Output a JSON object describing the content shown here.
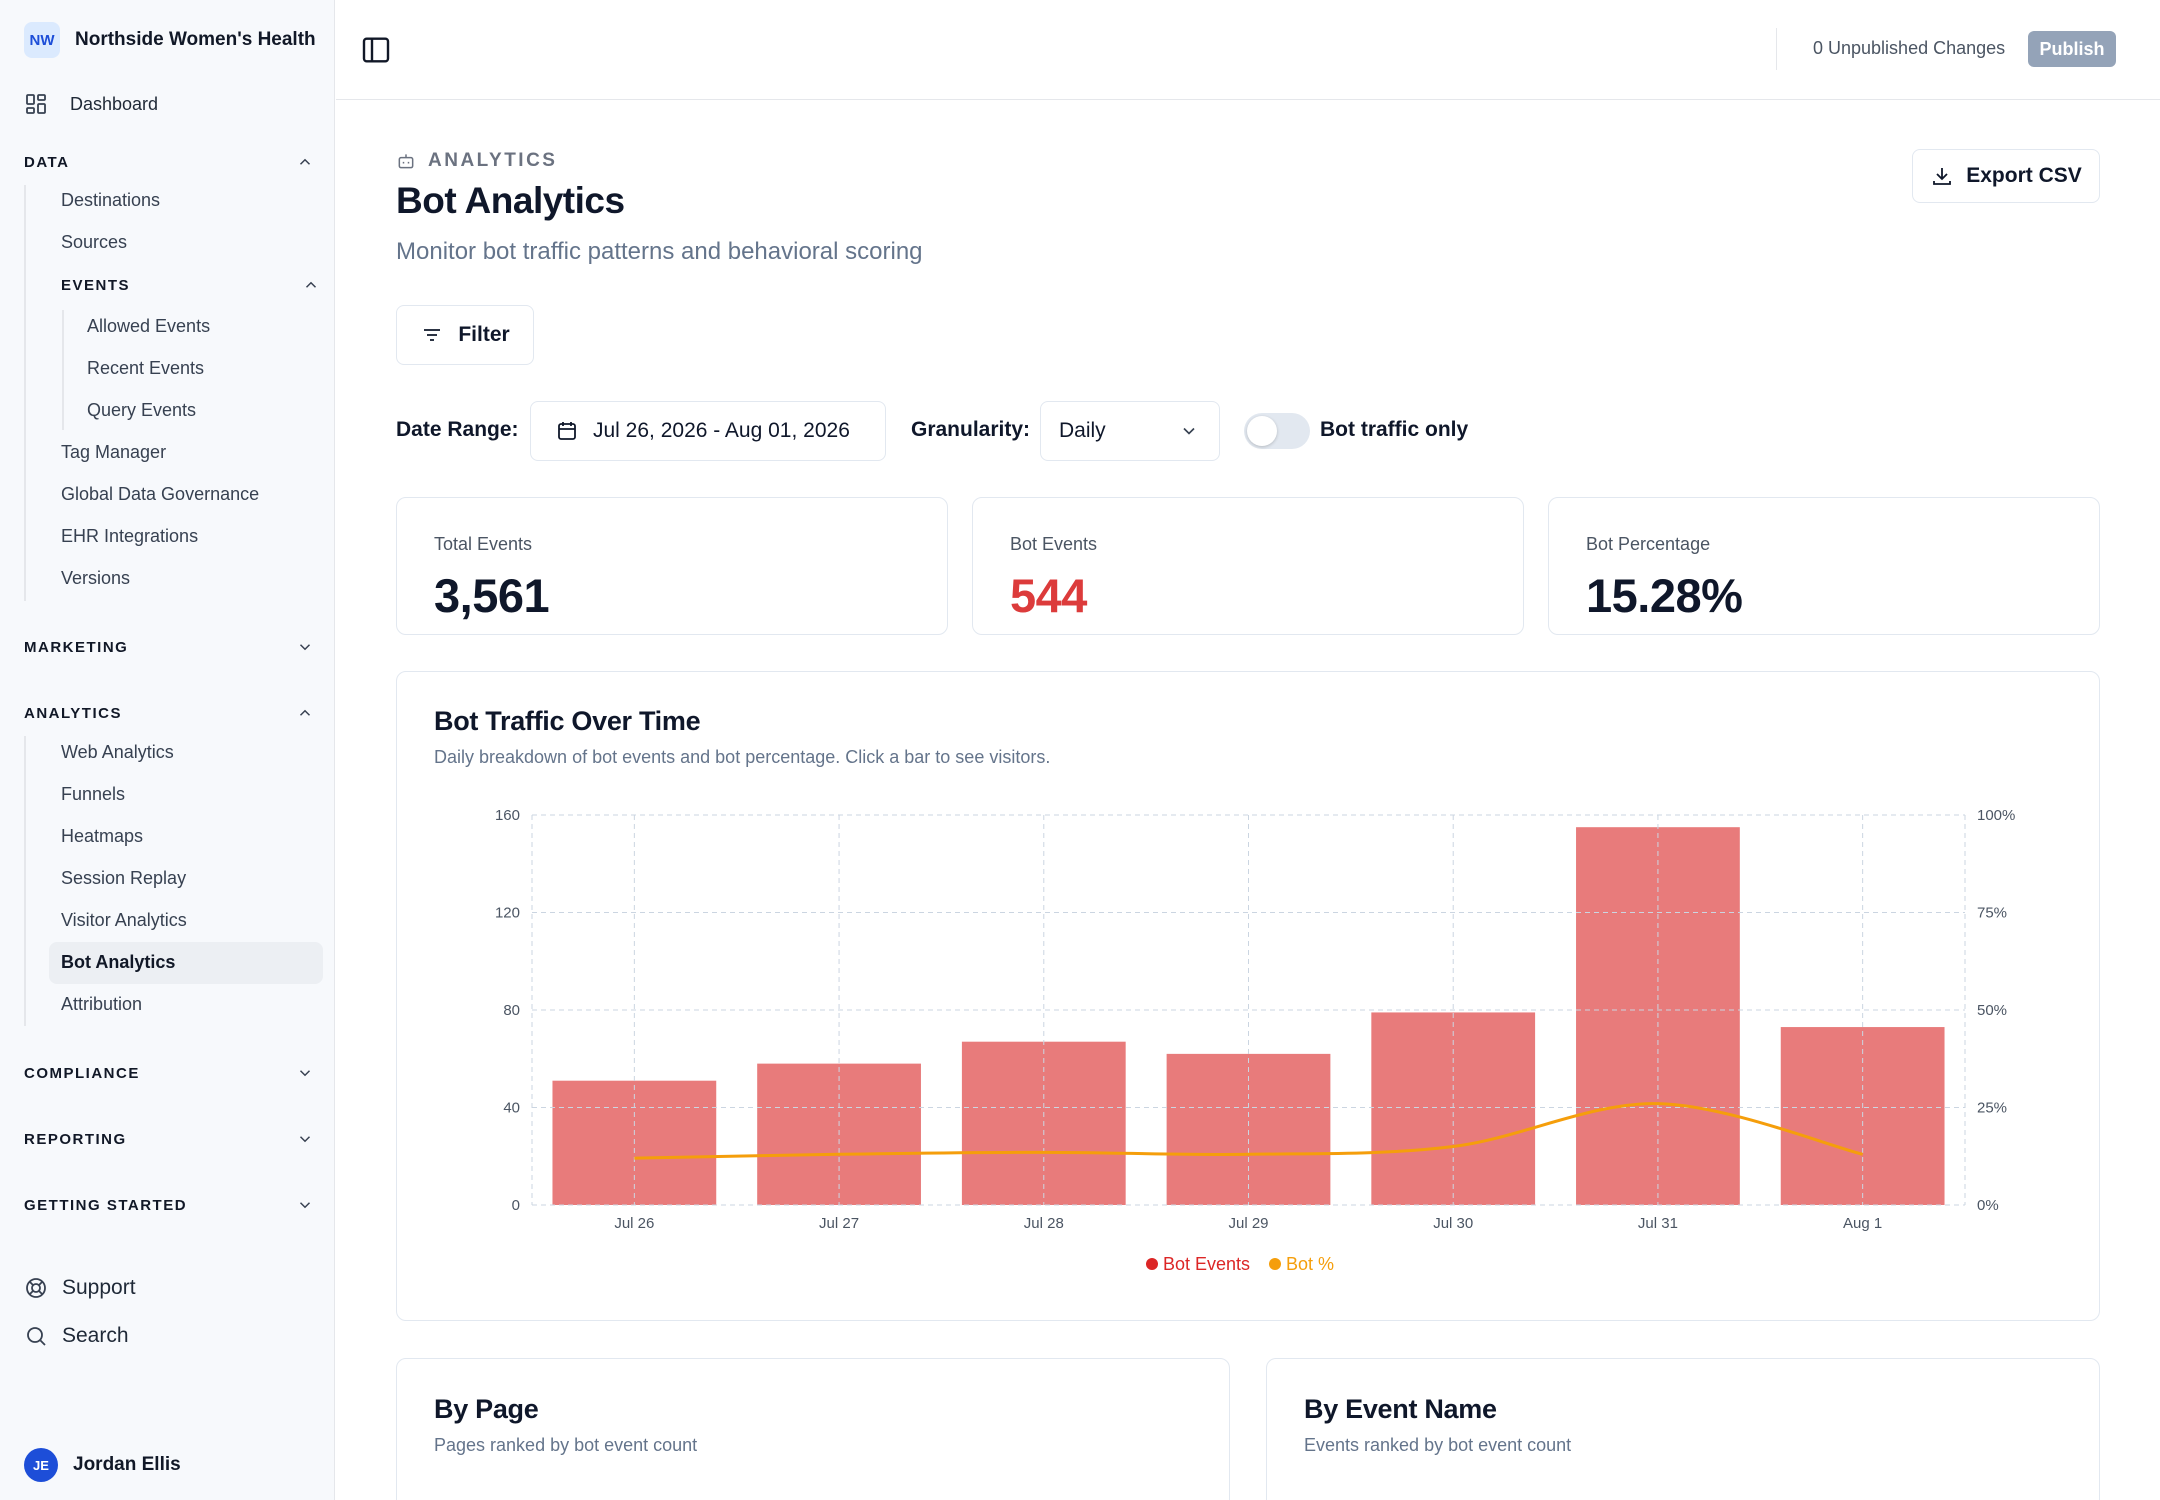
{
  "org": {
    "initials": "NW",
    "name": "Northside Women's Health"
  },
  "nav": {
    "dashboard": "Dashboard",
    "data": {
      "label": "DATA",
      "items": [
        "Destinations",
        "Sources"
      ],
      "events": {
        "label": "EVENTS",
        "items": [
          "Allowed Events",
          "Recent Events",
          "Query Events"
        ]
      },
      "items_after": [
        "Tag Manager",
        "Global Data Governance",
        "EHR Integrations",
        "Versions"
      ]
    },
    "marketing": "MARKETING",
    "analytics": {
      "label": "ANALYTICS",
      "items": [
        "Web Analytics",
        "Funnels",
        "Heatmaps",
        "Session Replay",
        "Visitor Analytics",
        "Bot Analytics",
        "Attribution"
      ],
      "active": "Bot Analytics"
    },
    "compliance": "COMPLIANCE",
    "reporting": "REPORTING",
    "getting_started": "GETTING STARTED",
    "support": "Support",
    "search": "Search",
    "user": {
      "initials": "JE",
      "name": "Jordan Ellis"
    }
  },
  "topbar": {
    "unpublished": "0 Unpublished Changes",
    "publish": "Publish"
  },
  "header": {
    "eyebrow": "ANALYTICS",
    "title": "Bot Analytics",
    "subtitle": "Monitor bot traffic patterns and behavioral scoring",
    "export": "Export CSV",
    "filter": "Filter"
  },
  "controls": {
    "date_label": "Date Range:",
    "date_value": "Jul 26, 2026 - Aug 01, 2026",
    "granularity_label": "Granularity:",
    "granularity_value": "Daily",
    "toggle_label": "Bot traffic only",
    "toggle_on": false
  },
  "stats": [
    {
      "label": "Total Events",
      "value": "3,561"
    },
    {
      "label": "Bot Events",
      "value": "544"
    },
    {
      "label": "Bot Percentage",
      "value": "15.28%"
    }
  ],
  "chart_card": {
    "title": "Bot Traffic Over Time",
    "subtitle": "Daily breakdown of bot events and bot percentage. Click a bar to see visitors."
  },
  "chart_data": {
    "type": "bar",
    "categories": [
      "Jul 26",
      "Jul 27",
      "Jul 28",
      "Jul 29",
      "Jul 30",
      "Jul 31",
      "Aug 1"
    ],
    "series": [
      {
        "name": "Bot Events",
        "type": "bar",
        "axis": "left",
        "color": "#e87b7b",
        "values": [
          51,
          58,
          67,
          62,
          79,
          155,
          73
        ]
      },
      {
        "name": "Bot %",
        "type": "line",
        "axis": "right",
        "color": "#f59e0b",
        "values": [
          12,
          13,
          13.5,
          13,
          15,
          26,
          13
        ]
      }
    ],
    "y_left": {
      "min": 0,
      "max": 160,
      "ticks": [
        0,
        40,
        80,
        120,
        160
      ]
    },
    "y_right": {
      "min": 0,
      "max": 100,
      "ticks": [
        "0%",
        "25%",
        "50%",
        "75%",
        "100%"
      ]
    },
    "grid": true,
    "legend": "bottom-center",
    "legend_colors": {
      "Bot Events": "#dc2626",
      "Bot %": "#f59e0b"
    }
  },
  "by_page": {
    "title": "By Page",
    "subtitle": "Pages ranked by bot event count"
  },
  "by_event": {
    "title": "By Event Name",
    "subtitle": "Events ranked by bot event count"
  }
}
